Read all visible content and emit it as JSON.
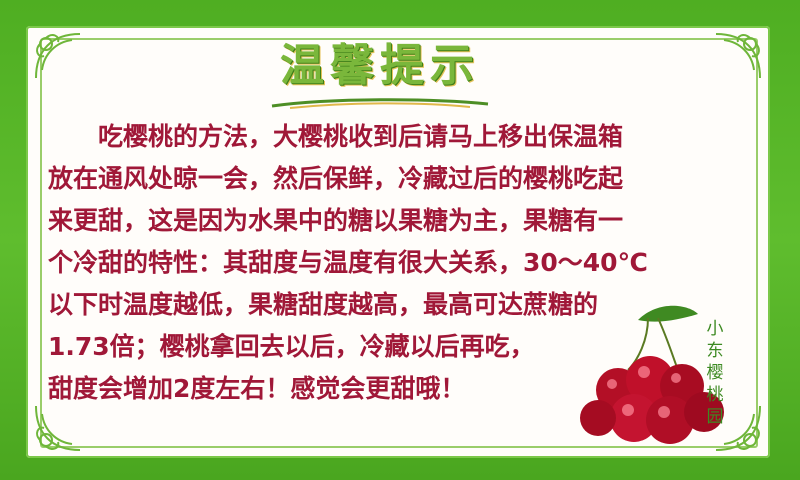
{
  "title": "温馨提示",
  "lines": [
    "吃樱桃的方法，大樱桃收到后请马上移出保温箱",
    "放在通风处晾一会，然后保鲜，冷藏过后的樱桃吃起",
    "来更甜，这是因为水果中的糖以果糖为主，果糖有一",
    "个冷甜的特性：其甜度与温度有很大关系，30～40℃",
    "以下时温度越低，果糖甜度越高，最高可达蔗糖的",
    "1.73倍；樱桃拿回去以后，冷藏以后再吃，",
    "甜度会增加2度左右！感觉会更甜哦！"
  ],
  "side_label": "小东樱桃园",
  "colors": {
    "background_green": "#58b52c",
    "text_red": "#a01838",
    "title_green": "#7ab73b",
    "cherry_red": "#c0102a"
  },
  "icons": [
    "corner-ornament-icon",
    "cherries-icon",
    "leaf-icon"
  ]
}
